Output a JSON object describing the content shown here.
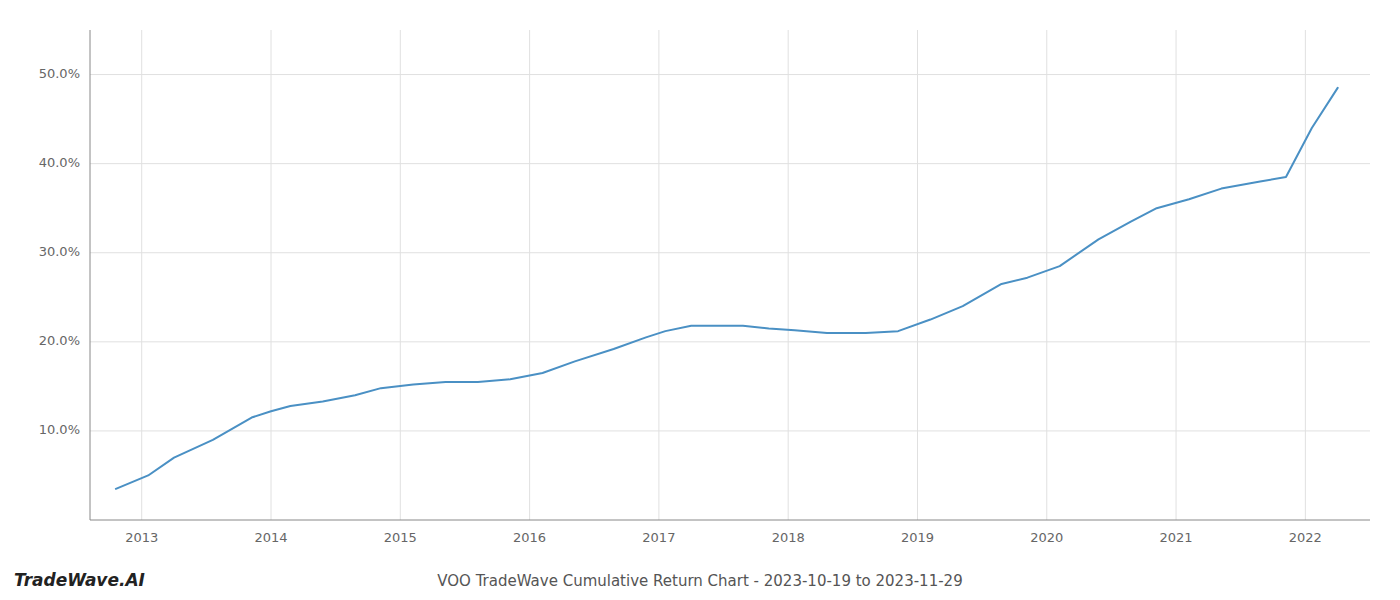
{
  "chart_data": {
    "type": "line",
    "title": "VOO TradeWave Cumulative Return Chart - 2023-10-19 to 2023-11-29",
    "annotations": [
      "TradeWave.AI"
    ],
    "x": [
      2012.8,
      2013.05,
      2013.25,
      2013.55,
      2013.85,
      2014.0,
      2014.15,
      2014.4,
      2014.65,
      2014.85,
      2015.1,
      2015.35,
      2015.6,
      2015.85,
      2016.1,
      2016.35,
      2016.65,
      2016.9,
      2017.05,
      2017.25,
      2017.65,
      2017.85,
      2018.05,
      2018.3,
      2018.6,
      2018.85,
      2019.1,
      2019.35,
      2019.65,
      2019.85,
      2020.1,
      2020.4,
      2020.65,
      2020.85,
      2021.1,
      2021.35,
      2021.65,
      2021.85,
      2022.05,
      2022.25
    ],
    "values": [
      3.5,
      5.0,
      7.0,
      9.0,
      11.5,
      12.2,
      12.8,
      13.3,
      14.0,
      14.8,
      15.2,
      15.5,
      15.5,
      15.8,
      16.5,
      17.8,
      19.2,
      20.5,
      21.2,
      21.8,
      21.8,
      21.5,
      21.3,
      21.0,
      21.0,
      21.2,
      22.5,
      24.0,
      26.5,
      27.2,
      28.5,
      31.5,
      33.5,
      35.0,
      36.0,
      37.2,
      38.0,
      38.5,
      44.0,
      48.5
    ],
    "color": "#4a90c4",
    "xlim": [
      2012.6,
      2022.5
    ],
    "ylim": [
      0,
      55
    ],
    "xticks": [
      2013,
      2014,
      2015,
      2016,
      2017,
      2018,
      2019,
      2020,
      2021,
      2022
    ],
    "yticks": [
      {
        "value": 10.0,
        "label": "10.0%"
      },
      {
        "value": 20.0,
        "label": "20.0%"
      },
      {
        "value": 30.0,
        "label": "30.0%"
      },
      {
        "value": 40.0,
        "label": "40.0%"
      },
      {
        "value": 50.0,
        "label": "50.0%"
      }
    ],
    "grid": true
  }
}
